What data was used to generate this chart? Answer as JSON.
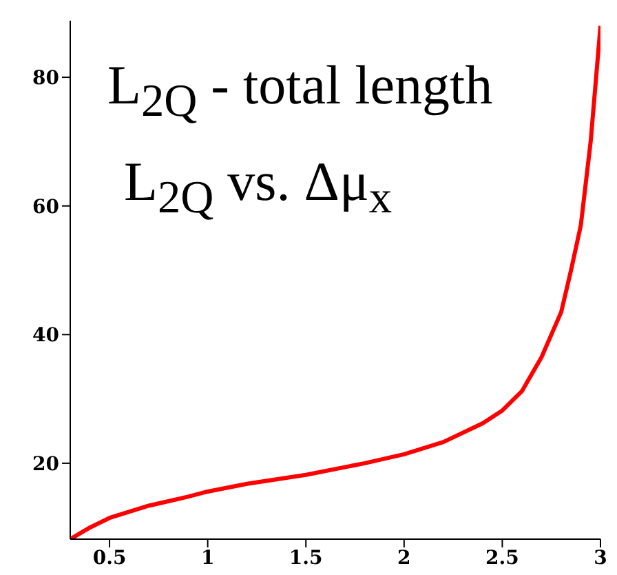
{
  "chart_data": {
    "type": "line",
    "annotations": [
      "L$_{2Q}$ - total length",
      "L$_{2Q}$ vs. Δμ$_{x}$"
    ],
    "x": [
      0.3,
      0.4,
      0.5,
      0.7,
      0.9,
      1.0,
      1.2,
      1.5,
      1.8,
      2.0,
      2.2,
      2.4,
      2.5,
      2.6,
      2.7,
      2.8,
      2.85,
      2.9,
      2.95,
      3.0
    ],
    "series": [
      {
        "color": "#ff0000",
        "values": [
          8.2,
          10,
          11.5,
          13.4,
          14.8,
          15.6,
          16.8,
          18.2,
          20,
          21.4,
          23.3,
          26.2,
          28.2,
          31.2,
          36.5,
          43.5,
          50,
          57,
          70,
          88
        ]
      }
    ],
    "xlim": [
      0.3,
      3
    ],
    "xticks": [
      0.5,
      1,
      1.5,
      2,
      2.5,
      3
    ],
    "ylim": [
      8.2,
      88.8
    ],
    "yticks": [
      20,
      40,
      60,
      80
    ],
    "grid": false,
    "legend": false,
    "marker": "none",
    "line_style": "solid"
  }
}
